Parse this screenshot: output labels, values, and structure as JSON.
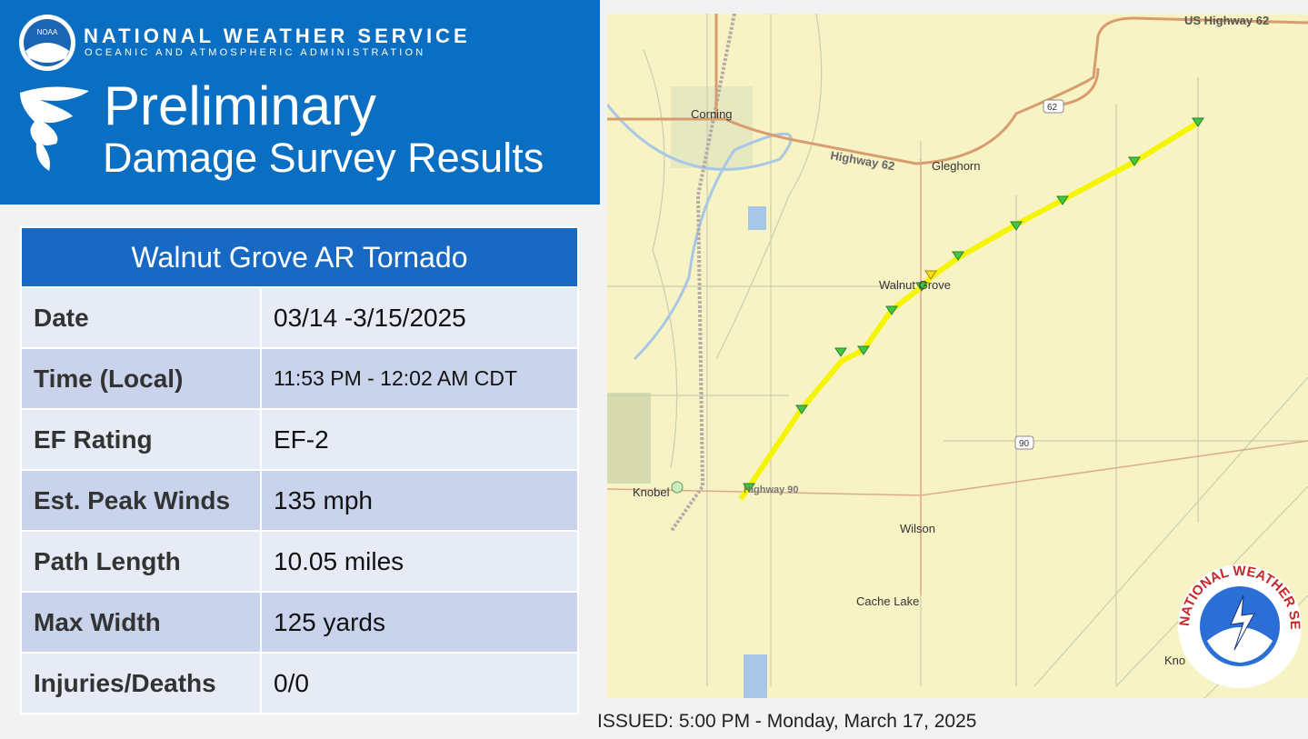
{
  "header": {
    "logo_text": "NOAA",
    "agency": "NATIONAL WEATHER SERVICE",
    "department": "OCEANIC AND ATMOSPHERIC ADMINISTRATION",
    "title": "Preliminary",
    "subtitle": "Damage Survey Results"
  },
  "table": {
    "title": "Walnut Grove AR Tornado",
    "rows": [
      [
        "Date",
        "03/14 -3/15/2025"
      ],
      [
        "Time (Local)",
        "11:53 PM - 12:02 AM CDT"
      ],
      [
        "EF Rating",
        "EF-2"
      ],
      [
        "Est. Peak Winds",
        "135 mph"
      ],
      [
        "Path Length",
        "10.05 miles"
      ],
      [
        "Max Width",
        "125 yards"
      ],
      [
        "Injuries/Deaths",
        "0/0"
      ]
    ]
  },
  "map": {
    "labels": [
      "US Highway 62",
      "62",
      "Corning",
      "Highway 62",
      "Gleghorn",
      "Walnut Grove",
      "90",
      "Knobel",
      "Highway 90",
      "Wilson",
      "Cache Lake",
      "Kno"
    ],
    "badge_text": "NATIONAL WEATHER SERVICE"
  },
  "footer": {
    "issued": "ISSUED: 5:00 PM - Monday, March 17, 2025"
  }
}
